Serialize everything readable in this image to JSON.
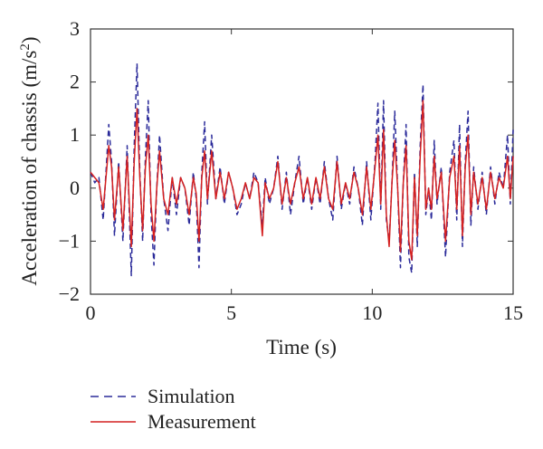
{
  "colors": {
    "simulation": "#2b2b9a",
    "measurement": "#d42020",
    "axis": "#333333"
  },
  "chart_data": {
    "type": "line",
    "xlabel": "Time (s)",
    "ylabel": "Acceleration of chassis (m/s",
    "ylabel_sup": "2",
    "ylabel_close": ")",
    "xlim": [
      0,
      15
    ],
    "ylim": [
      -2,
      3
    ],
    "xticks": [
      0,
      5,
      10,
      15
    ],
    "yticks": [
      -2,
      -1,
      0,
      1,
      2,
      3
    ],
    "xtick_labels": [
      "0",
      "5",
      "10",
      "15"
    ],
    "ytick_labels": [
      "−2",
      "−1",
      "0",
      "1",
      "2",
      "3"
    ],
    "grid": false,
    "legend_position": "below",
    "series": [
      {
        "name": "Simulation",
        "style": "dashed",
        "color_key": "simulation",
        "x": [
          0,
          0.15,
          0.3,
          0.45,
          0.55,
          0.65,
          0.75,
          0.85,
          1.0,
          1.15,
          1.3,
          1.45,
          1.55,
          1.65,
          1.75,
          1.85,
          1.95,
          2.05,
          2.15,
          2.25,
          2.35,
          2.45,
          2.6,
          2.75,
          2.9,
          3.05,
          3.2,
          3.35,
          3.5,
          3.65,
          3.75,
          3.85,
          3.95,
          4.05,
          4.15,
          4.3,
          4.45,
          4.6,
          4.75,
          4.9,
          5.05,
          5.2,
          5.35,
          5.5,
          5.65,
          5.8,
          5.95,
          6.1,
          6.2,
          6.35,
          6.5,
          6.65,
          6.8,
          6.95,
          7.1,
          7.25,
          7.4,
          7.55,
          7.7,
          7.85,
          8.0,
          8.15,
          8.3,
          8.45,
          8.6,
          8.75,
          8.9,
          9.05,
          9.2,
          9.35,
          9.5,
          9.65,
          9.8,
          9.95,
          10.1,
          10.2,
          10.3,
          10.4,
          10.5,
          10.6,
          10.7,
          10.8,
          10.9,
          11.0,
          11.1,
          11.2,
          11.3,
          11.4,
          11.5,
          11.6,
          11.7,
          11.8,
          11.9,
          12.0,
          12.1,
          12.2,
          12.3,
          12.45,
          12.6,
          12.75,
          12.9,
          13.0,
          13.1,
          13.2,
          13.3,
          13.4,
          13.5,
          13.6,
          13.75,
          13.9,
          14.05,
          14.2,
          14.35,
          14.5,
          14.65,
          14.8,
          14.9,
          15.0
        ],
        "y": [
          0.3,
          0.1,
          0.2,
          -0.6,
          0.3,
          1.2,
          0.5,
          -0.9,
          0.5,
          -1.0,
          0.8,
          -1.65,
          0.8,
          2.35,
          0.3,
          -1.0,
          0.6,
          1.65,
          -0.5,
          -1.45,
          0.0,
          1.0,
          -0.2,
          -0.8,
          0.2,
          -0.5,
          0.2,
          0.0,
          -0.7,
          0.3,
          -0.2,
          -1.5,
          0.3,
          1.25,
          -0.3,
          1.0,
          -0.2,
          0.4,
          -0.3,
          0.3,
          0.0,
          -0.5,
          -0.3,
          0.1,
          -0.2,
          0.3,
          0.1,
          -0.7,
          0.2,
          -0.3,
          0.0,
          0.6,
          -0.4,
          0.3,
          -0.5,
          0.1,
          0.6,
          -0.3,
          0.2,
          -0.4,
          0.2,
          -0.3,
          0.5,
          -0.2,
          -0.6,
          0.6,
          -0.4,
          0.1,
          -0.3,
          0.4,
          0.0,
          -0.7,
          0.5,
          -0.6,
          0.5,
          1.6,
          -0.4,
          1.65,
          -0.6,
          -1.0,
          0.1,
          1.45,
          0.0,
          -1.5,
          0.1,
          1.2,
          -1.3,
          -1.6,
          0.3,
          -1.1,
          0.8,
          1.95,
          -0.5,
          0.0,
          -0.6,
          0.9,
          -0.3,
          0.4,
          -1.3,
          0.3,
          0.9,
          -0.6,
          1.2,
          -1.1,
          0.5,
          1.45,
          -0.7,
          0.4,
          -0.4,
          0.3,
          -0.5,
          0.4,
          -0.3,
          0.3,
          0.0,
          1.0,
          -0.3,
          1.1
        ]
      },
      {
        "name": "Measurement",
        "style": "solid",
        "color_key": "measurement",
        "x": [
          0,
          0.15,
          0.3,
          0.45,
          0.55,
          0.65,
          0.75,
          0.85,
          1.0,
          1.15,
          1.3,
          1.45,
          1.55,
          1.65,
          1.75,
          1.85,
          1.95,
          2.05,
          2.15,
          2.25,
          2.35,
          2.45,
          2.6,
          2.75,
          2.9,
          3.05,
          3.2,
          3.35,
          3.5,
          3.65,
          3.75,
          3.85,
          3.95,
          4.05,
          4.15,
          4.3,
          4.45,
          4.6,
          4.75,
          4.9,
          5.05,
          5.2,
          5.35,
          5.5,
          5.65,
          5.8,
          5.95,
          6.1,
          6.2,
          6.35,
          6.5,
          6.65,
          6.8,
          6.95,
          7.1,
          7.25,
          7.4,
          7.55,
          7.7,
          7.85,
          8.0,
          8.15,
          8.3,
          8.45,
          8.6,
          8.75,
          8.9,
          9.05,
          9.2,
          9.35,
          9.5,
          9.65,
          9.8,
          9.95,
          10.1,
          10.2,
          10.3,
          10.4,
          10.5,
          10.6,
          10.7,
          10.8,
          10.9,
          11.0,
          11.1,
          11.2,
          11.3,
          11.4,
          11.5,
          11.6,
          11.7,
          11.8,
          11.9,
          12.0,
          12.1,
          12.2,
          12.3,
          12.45,
          12.6,
          12.75,
          12.9,
          13.0,
          13.1,
          13.2,
          13.3,
          13.4,
          13.5,
          13.6,
          13.75,
          13.9,
          14.05,
          14.2,
          14.35,
          14.5,
          14.65,
          14.8,
          14.9,
          15.0
        ],
        "y": [
          0.3,
          0.2,
          0.1,
          -0.4,
          0.2,
          0.8,
          0.4,
          -0.6,
          0.4,
          -0.8,
          0.6,
          -1.1,
          0.5,
          1.5,
          0.2,
          -0.8,
          0.4,
          1.0,
          -0.3,
          -1.0,
          0.0,
          0.7,
          -0.2,
          -0.5,
          0.2,
          -0.3,
          0.2,
          0.0,
          -0.5,
          0.2,
          -0.1,
          -1.0,
          0.2,
          0.7,
          -0.2,
          0.7,
          -0.2,
          0.3,
          -0.2,
          0.3,
          0.0,
          -0.4,
          -0.2,
          0.1,
          -0.2,
          0.2,
          0.1,
          -0.9,
          0.1,
          -0.2,
          0.0,
          0.5,
          -0.3,
          0.2,
          -0.3,
          0.1,
          0.4,
          -0.2,
          0.2,
          -0.3,
          0.2,
          -0.2,
          0.4,
          -0.2,
          -0.4,
          0.5,
          -0.3,
          0.1,
          -0.2,
          0.3,
          0.0,
          -0.5,
          0.4,
          -0.4,
          0.4,
          1.0,
          -0.3,
          1.1,
          -0.5,
          -1.1,
          0.1,
          0.9,
          0.0,
          -1.2,
          0.1,
          0.8,
          -1.0,
          -1.35,
          0.2,
          -0.9,
          0.6,
          1.65,
          -0.4,
          0.0,
          -0.4,
          0.6,
          -0.2,
          0.3,
          -1.0,
          0.2,
          0.6,
          -0.4,
          0.8,
          -0.9,
          0.4,
          1.0,
          -0.5,
          0.3,
          -0.3,
          0.2,
          -0.4,
          0.3,
          -0.2,
          0.2,
          0.0,
          0.6,
          -0.2,
          0.6
        ]
      }
    ]
  }
}
